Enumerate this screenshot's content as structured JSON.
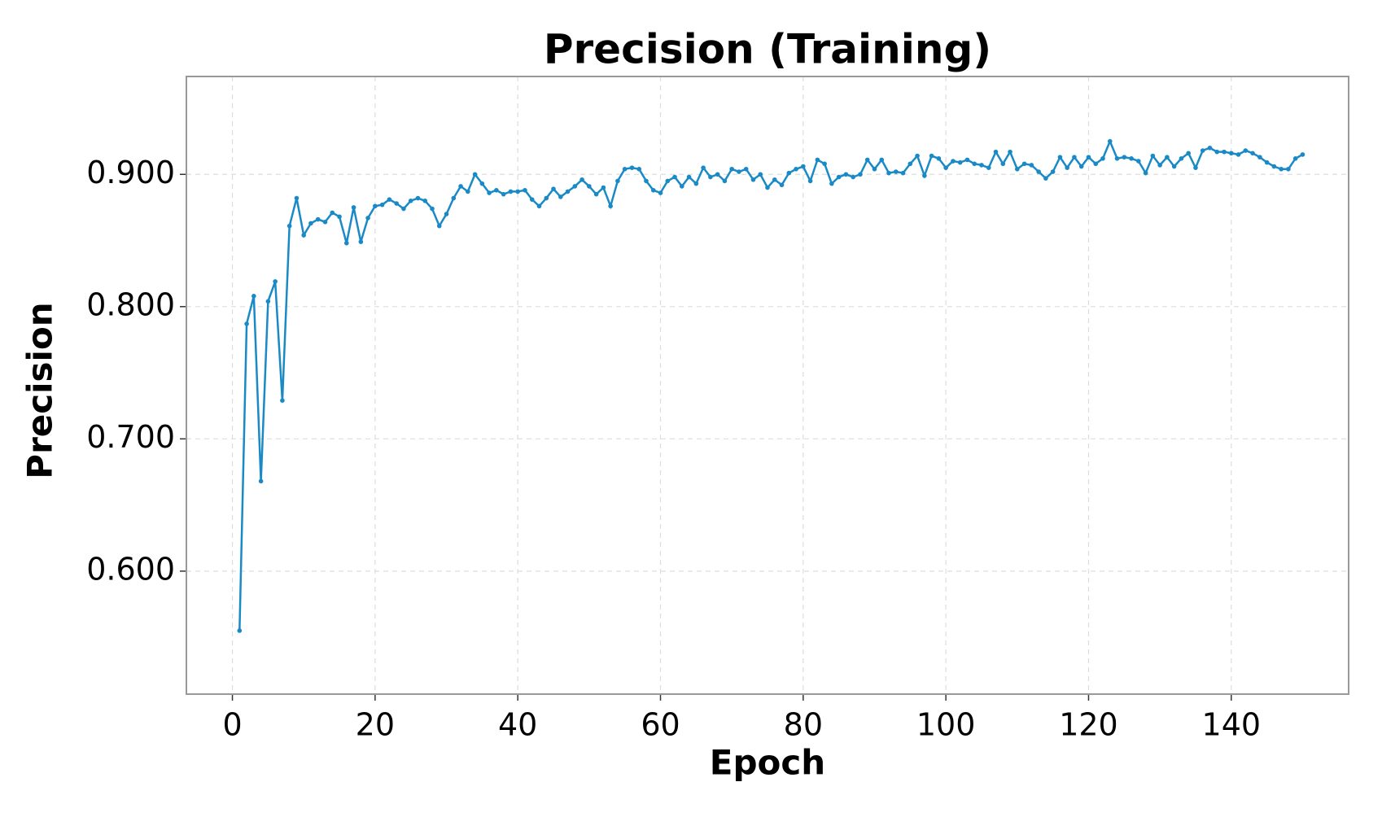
{
  "chart_data": {
    "type": "line",
    "title": "Precision (Training)",
    "xlabel": "Epoch",
    "ylabel": "Precision",
    "x": [
      1,
      2,
      3,
      4,
      5,
      6,
      7,
      8,
      9,
      10,
      11,
      12,
      13,
      14,
      15,
      16,
      17,
      18,
      19,
      20,
      21,
      22,
      23,
      24,
      25,
      26,
      27,
      28,
      29,
      30,
      31,
      32,
      33,
      34,
      35,
      36,
      37,
      38,
      39,
      40,
      41,
      42,
      43,
      44,
      45,
      46,
      47,
      48,
      49,
      50,
      51,
      52,
      53,
      54,
      55,
      56,
      57,
      58,
      59,
      60,
      61,
      62,
      63,
      64,
      65,
      66,
      67,
      68,
      69,
      70,
      71,
      72,
      73,
      74,
      75,
      76,
      77,
      78,
      79,
      80,
      81,
      82,
      83,
      84,
      85,
      86,
      87,
      88,
      89,
      90,
      91,
      92,
      93,
      94,
      95,
      96,
      97,
      98,
      99,
      100,
      101,
      102,
      103,
      104,
      105,
      106,
      107,
      108,
      109,
      110,
      111,
      112,
      113,
      114,
      115,
      116,
      117,
      118,
      119,
      120,
      121,
      122,
      123,
      124,
      125,
      126,
      127,
      128,
      129,
      130,
      131,
      132,
      133,
      134,
      135,
      136,
      137,
      138,
      139,
      140,
      141,
      142,
      143,
      144,
      145,
      146,
      147,
      148,
      149,
      150
    ],
    "series": [
      {
        "name": "Precision",
        "color": "#1a8ac6",
        "values": [
          0.555,
          0.787,
          0.808,
          0.668,
          0.804,
          0.819,
          0.729,
          0.861,
          0.882,
          0.854,
          0.863,
          0.866,
          0.864,
          0.871,
          0.868,
          0.848,
          0.875,
          0.849,
          0.867,
          0.876,
          0.877,
          0.881,
          0.878,
          0.874,
          0.88,
          0.882,
          0.88,
          0.874,
          0.861,
          0.87,
          0.882,
          0.891,
          0.887,
          0.9,
          0.893,
          0.886,
          0.888,
          0.885,
          0.887,
          0.887,
          0.888,
          0.881,
          0.876,
          0.882,
          0.889,
          0.883,
          0.887,
          0.891,
          0.896,
          0.891,
          0.885,
          0.89,
          0.876,
          0.895,
          0.904,
          0.905,
          0.904,
          0.895,
          0.888,
          0.886,
          0.895,
          0.898,
          0.891,
          0.898,
          0.893,
          0.905,
          0.898,
          0.9,
          0.895,
          0.904,
          0.902,
          0.904,
          0.896,
          0.9,
          0.89,
          0.896,
          0.892,
          0.901,
          0.904,
          0.906,
          0.895,
          0.911,
          0.908,
          0.893,
          0.898,
          0.9,
          0.898,
          0.9,
          0.911,
          0.904,
          0.911,
          0.901,
          0.902,
          0.901,
          0.908,
          0.914,
          0.899,
          0.914,
          0.912,
          0.905,
          0.91,
          0.909,
          0.911,
          0.908,
          0.907,
          0.905,
          0.917,
          0.908,
          0.917,
          0.904,
          0.908,
          0.907,
          0.902,
          0.897,
          0.902,
          0.913,
          0.905,
          0.913,
          0.906,
          0.913,
          0.908,
          0.912,
          0.925,
          0.912,
          0.913,
          0.912,
          0.91,
          0.901,
          0.914,
          0.907,
          0.913,
          0.906,
          0.912,
          0.916,
          0.905,
          0.918,
          0.92,
          0.917,
          0.917,
          0.916,
          0.915,
          0.918,
          0.916,
          0.913,
          0.909,
          0.906,
          0.904,
          0.904,
          0.912,
          0.915
        ]
      }
    ],
    "xlim": [
      -6.45,
      156.45
    ],
    "xticks": [
      0,
      20,
      40,
      60,
      80,
      100,
      120,
      140
    ],
    "ylim": [
      0.507,
      0.974
    ],
    "yticks": [
      {
        "value": 0.6,
        "label": "0.600"
      },
      {
        "value": 0.7,
        "label": "0.700"
      },
      {
        "value": 0.8,
        "label": "0.800"
      },
      {
        "value": 0.9,
        "label": "0.900"
      }
    ],
    "grid": true
  }
}
